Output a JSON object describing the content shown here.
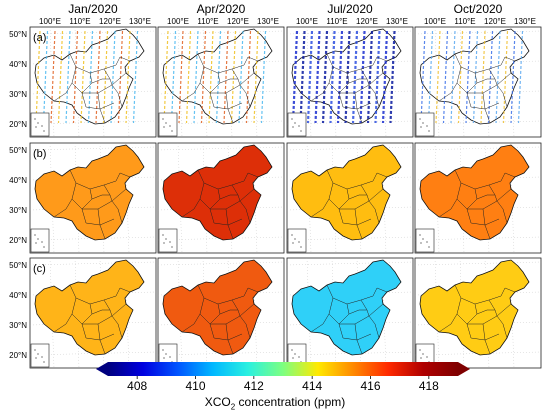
{
  "columns": [
    "Jan/2020",
    "Apr/2020",
    "Jul/2020",
    "Oct/2020"
  ],
  "rows": [
    "(a)",
    "(b)",
    "(c)"
  ],
  "lon_ticks": [
    "100°E",
    "110°E",
    "120°E",
    "130°E"
  ],
  "lat_ticks": [
    "50°N",
    "40°N",
    "30°N",
    "20°N"
  ],
  "colorbar": {
    "ticks": [
      "408",
      "410",
      "412",
      "414",
      "416",
      "418"
    ],
    "label_prefix": "XCO",
    "label_sub": "2",
    "label_suffix": " concentration (ppm)",
    "min": 407,
    "max": 419,
    "colors": [
      "#00007f",
      "#0000e0",
      "#0055ff",
      "#00b8ff",
      "#2af0e0",
      "#7dff80",
      "#ffe900",
      "#ff8a00",
      "#ff2a00",
      "#b00000",
      "#7f0000"
    ]
  },
  "colors": {
    "row_b": [
      "#ff9a1a",
      "#dd2f08",
      "#ffbd10",
      "#ff7f12"
    ],
    "row_c": [
      "#ffb418",
      "#f05a10",
      "#2fd0f8",
      "#ffcc14"
    ],
    "row_a_bg": "#ffffff"
  }
}
